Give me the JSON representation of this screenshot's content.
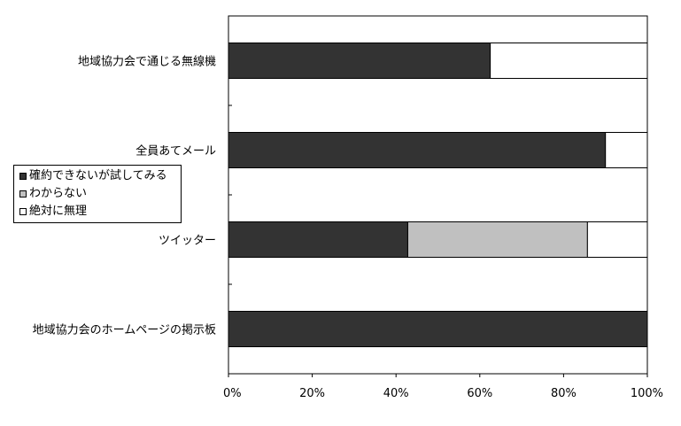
{
  "colors": {
    "definitely_possible": "#333333",
    "dont_know": "#c0c0c0",
    "absolutely_impossible": "#ffffff",
    "frame": "#000000"
  },
  "chart_data": {
    "type": "bar",
    "orientation": "horizontal",
    "stacked": true,
    "categories": [
      "地域協力会で通じる無線機",
      "全員あてメール",
      "ツイッター",
      "地域協力会のホームページの掲示板"
    ],
    "series": [
      {
        "name": "確約できないが試してみる",
        "values": [
          62.5,
          90,
          42.8,
          100
        ]
      },
      {
        "name": "わからない",
        "values": [
          0,
          0,
          42.9,
          0
        ]
      },
      {
        "name": "絶対に無理",
        "values": [
          37.5,
          10,
          14.3,
          0
        ]
      }
    ],
    "x_ticks": [
      "0%",
      "20%",
      "40%",
      "60%",
      "80%",
      "100%"
    ],
    "xlim": [
      0,
      100
    ],
    "title": "",
    "xlabel": "",
    "ylabel": "",
    "grid": false,
    "legend_position": "left"
  }
}
